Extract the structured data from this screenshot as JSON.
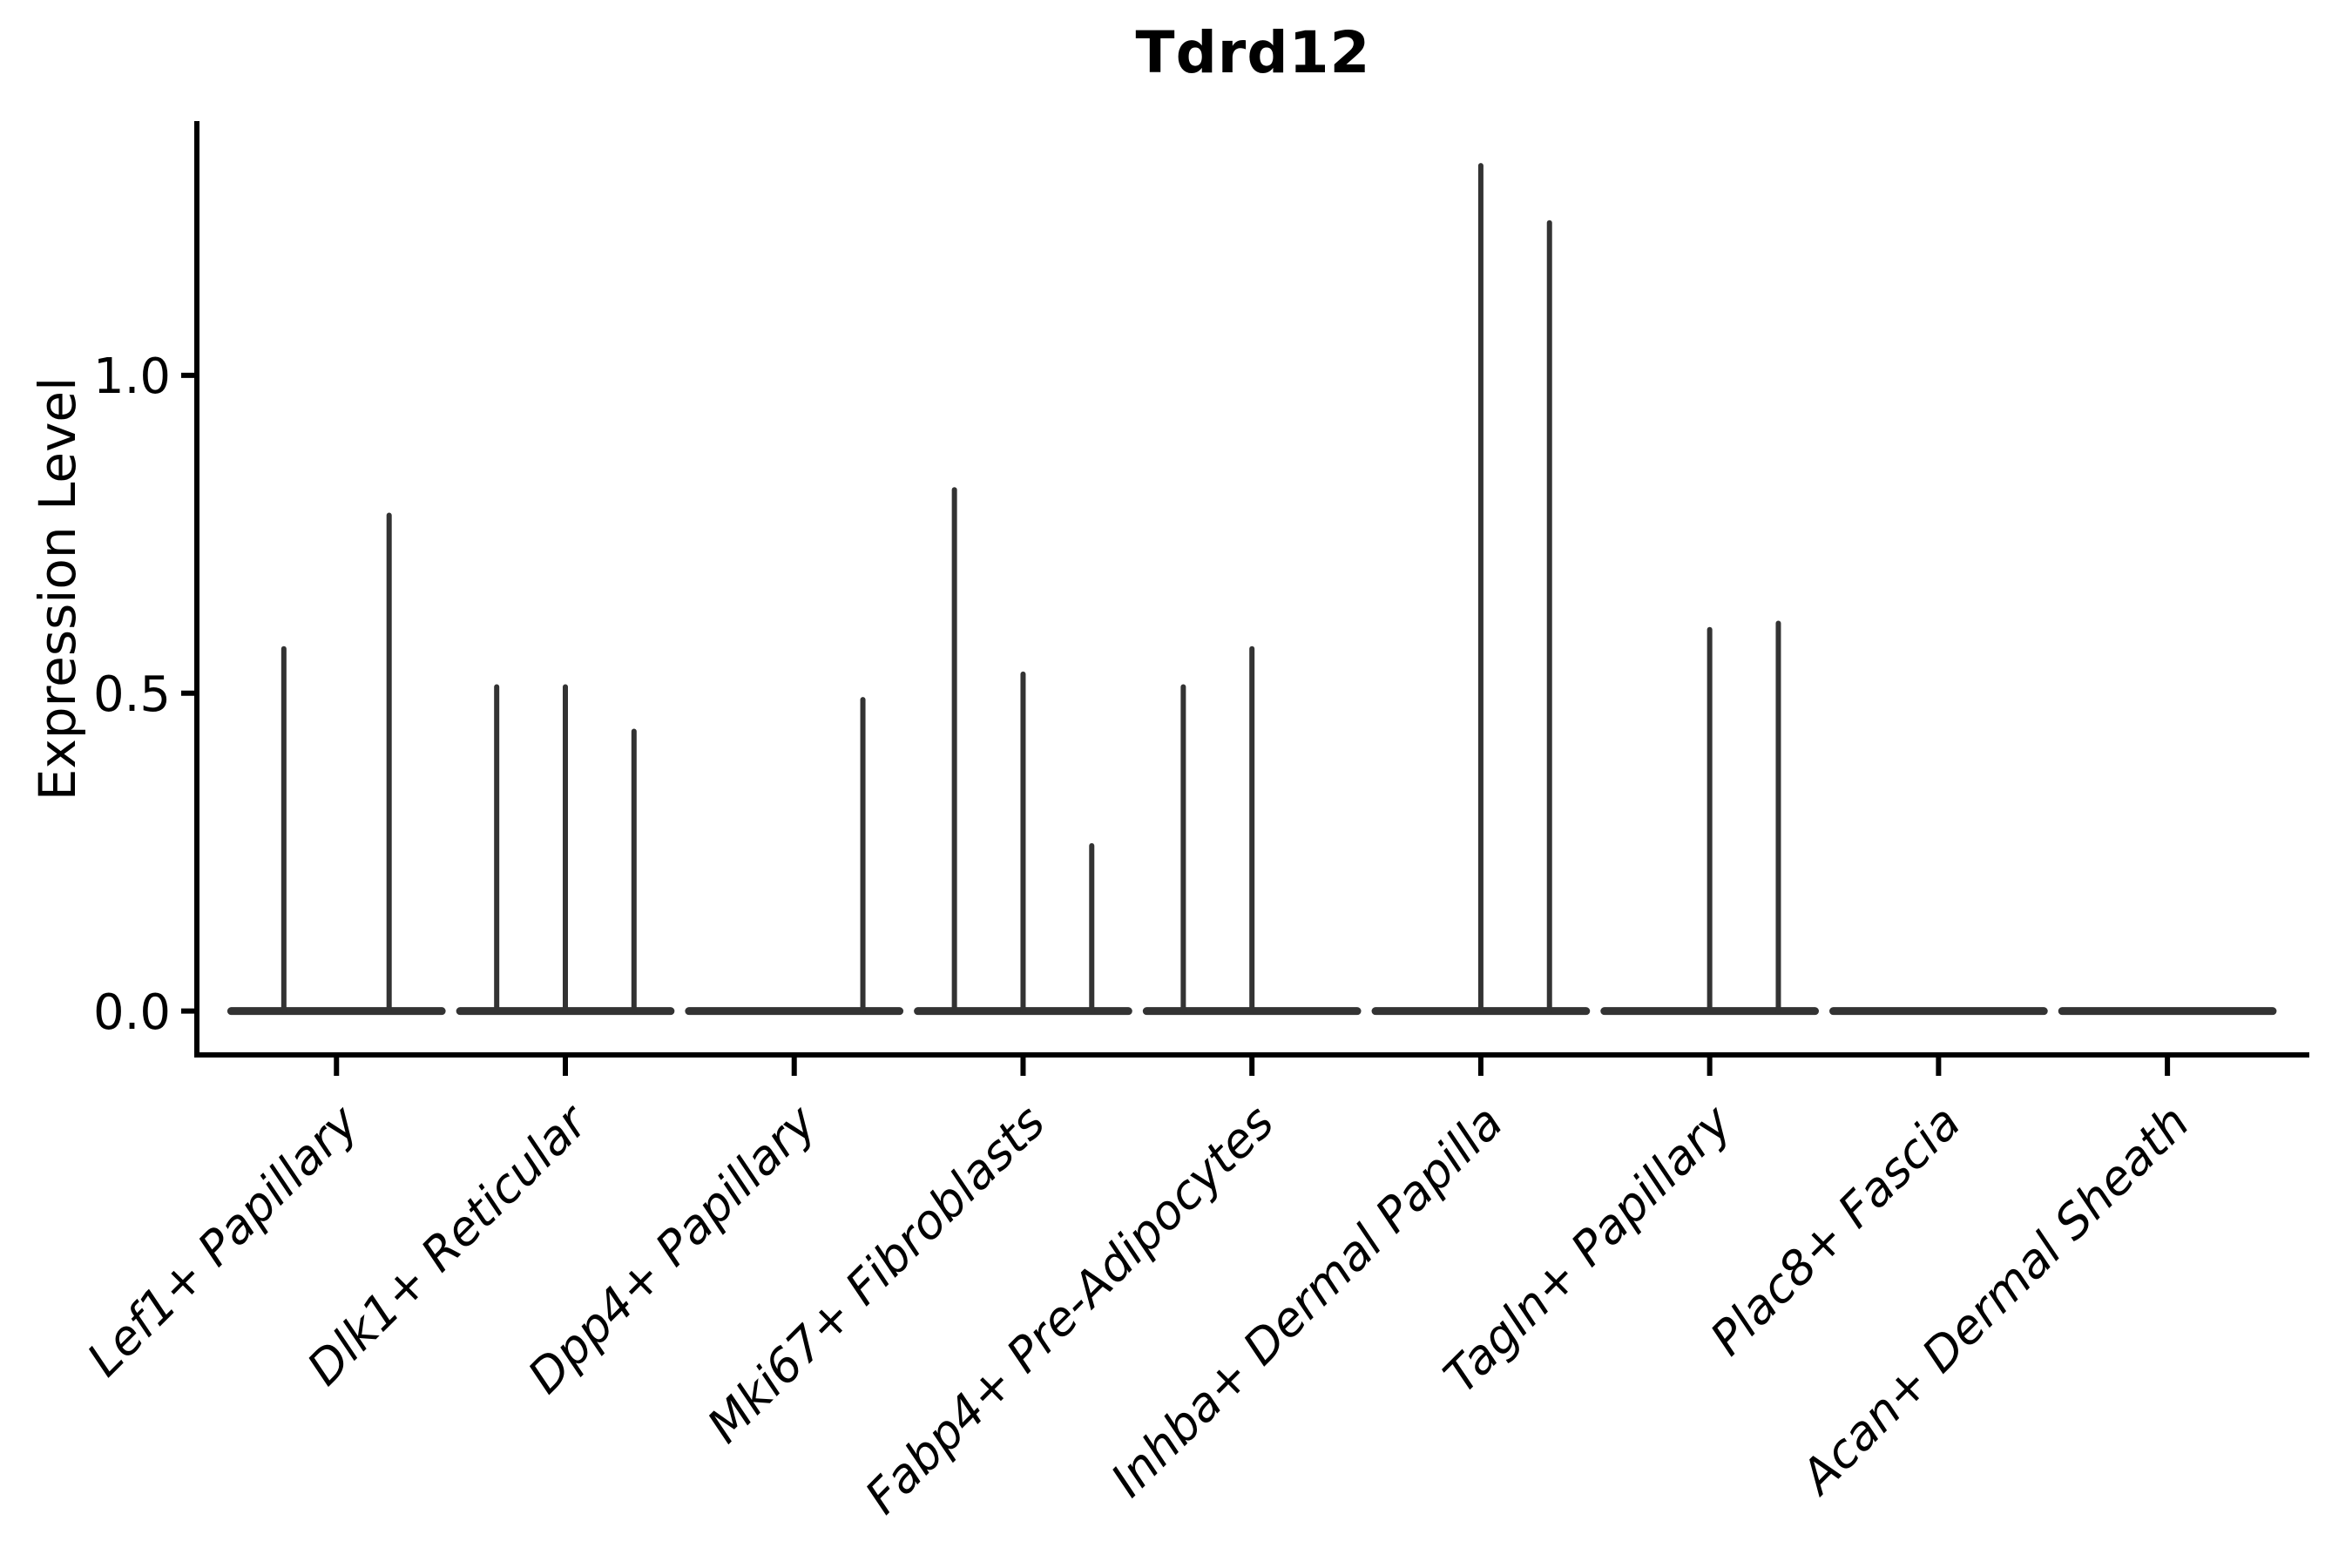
{
  "figure": {
    "title": "Tdrd12",
    "ylabel": "Expression Level"
  },
  "chart_data": {
    "type": "violin",
    "title": "Tdrd12",
    "xlabel": "",
    "ylabel": "Expression Level",
    "grid": false,
    "legend_position": "none",
    "violin_color": "#333333",
    "axis_color": "#000000",
    "ylim": [
      -0.069,
      1.4
    ],
    "xlim": [
      -0.61,
      8.62
    ],
    "yticks": [
      {
        "value": 0.0,
        "label": "0.0"
      },
      {
        "value": 0.5,
        "label": "0.5"
      },
      {
        "value": 1.0,
        "label": "1.0"
      }
    ],
    "categories": [
      "Lef1+ Papillary",
      "Dlk1+ Reticular",
      "Dpp4+ Papillary",
      "Mki67+ Fibroblasts",
      "Fabp4+ Pre-Adipocytes",
      "Inhba+ Dermal Papilla",
      "Tagln+ Papillary",
      "Plac8+ Fascia",
      "Acan+ Dermal Sheath"
    ],
    "base_half_width": 0.46,
    "baseline_value": 0.0,
    "groups": [
      {
        "category": "Lef1+ Papillary",
        "spikes": [
          {
            "offset": -0.23,
            "value": 0.57
          },
          {
            "offset": 0.23,
            "value": 0.78
          }
        ]
      },
      {
        "category": "Dlk1+ Reticular",
        "spikes": [
          {
            "offset": -0.3,
            "value": 0.51
          },
          {
            "offset": 0.0,
            "value": 0.51
          },
          {
            "offset": 0.3,
            "value": 0.44
          }
        ]
      },
      {
        "category": "Dpp4+ Papillary",
        "spikes": [
          {
            "offset": 0.3,
            "value": 0.49
          }
        ]
      },
      {
        "category": "Mki67+ Fibroblasts",
        "spikes": [
          {
            "offset": -0.3,
            "value": 0.82
          },
          {
            "offset": 0.0,
            "value": 0.53
          },
          {
            "offset": 0.3,
            "value": 0.26
          }
        ]
      },
      {
        "category": "Fabp4+ Pre-Adipocytes",
        "spikes": [
          {
            "offset": -0.3,
            "value": 0.51
          },
          {
            "offset": 0.0,
            "value": 0.57
          }
        ]
      },
      {
        "category": "Inhba+ Dermal Papilla",
        "spikes": [
          {
            "offset": 0.0,
            "value": 1.33
          },
          {
            "offset": 0.3,
            "value": 1.24
          }
        ]
      },
      {
        "category": "Tagln+ Papillary",
        "spikes": [
          {
            "offset": 0.0,
            "value": 0.6
          },
          {
            "offset": 0.3,
            "value": 0.61
          }
        ]
      },
      {
        "category": "Plac8+ Fascia",
        "spikes": []
      },
      {
        "category": "Acan+ Dermal Sheath",
        "spikes": []
      }
    ]
  }
}
